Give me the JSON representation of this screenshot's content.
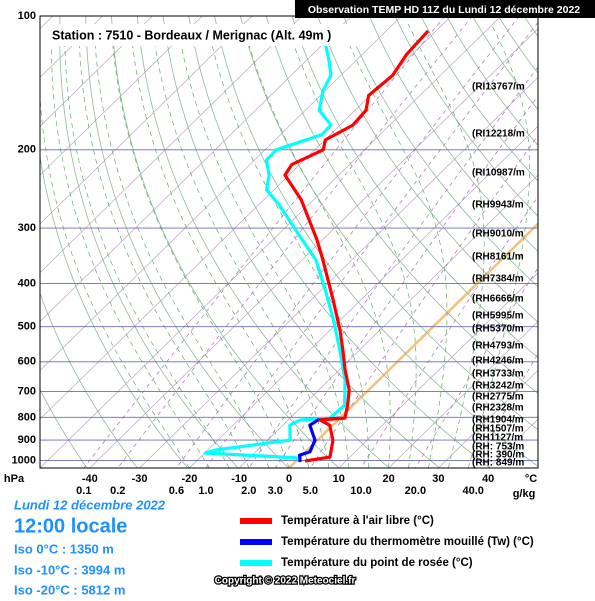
{
  "chart_data": {
    "type": "skewt",
    "title": "Observation TEMP HD 11Z du Lundi 12 décembre 2022",
    "station": "Station : 7510 - Bordeaux / Merignac (Alt. 49m )",
    "ylabel": "hPa",
    "xlabel": "°C",
    "log_y": true,
    "ylim": [
      100,
      1040
    ],
    "yticks": [
      100,
      200,
      300,
      400,
      500,
      600,
      700,
      800,
      900,
      1000
    ],
    "xlim": [
      -50,
      50
    ],
    "xticks": [
      -40,
      -30,
      -20,
      -10,
      0,
      10,
      20,
      30,
      40
    ],
    "mixing_ratio": {
      "label": "g/kg",
      "ticks": [
        0.1,
        0.2,
        0.6,
        {
          "value": 1,
          "label": "1.0"
        },
        {
          "value": 2,
          "label": "2.0"
        },
        {
          "value": 3,
          "label": "3.0"
        },
        {
          "value": 5,
          "label": "5.0"
        },
        {
          "value": 10,
          "label": "10.0"
        },
        {
          "value": 20,
          "label": "20.0"
        },
        {
          "value": 40,
          "label": "40.0"
        }
      ]
    },
    "series": [
      {
        "name": "Température à l'air libre (°C)",
        "color": "#ff0000",
        "pressure": [
          1003,
          983,
          900,
          833,
          811,
          803,
          751,
          694,
          626,
          565,
          509,
          436,
          354,
          319,
          259,
          228,
          216,
          200,
          190,
          176,
          163,
          151,
          136,
          122,
          108
        ],
        "values": [
          1.8,
          6.0,
          3.1,
          -0.6,
          -3.6,
          1.0,
          -1.1,
          -3.9,
          -8.8,
          -13.3,
          -18.0,
          -25.5,
          -35.8,
          -41.1,
          -52.5,
          -60.8,
          -61.6,
          -58.3,
          -59.9,
          -57.4,
          -57.8,
          -60.3,
          -59.6,
          -61.1,
          -61.6
        ]
      },
      {
        "name": "Température du thermomètre mouillé (Tw) (°C)",
        "color": "#0000ff",
        "pressure": [
          1008,
          973,
          957,
          900,
          833,
          811,
          803
        ],
        "values": [
          1.0,
          -0.5,
          0.9,
          -0.5,
          -4.6,
          -4.0,
          0
        ]
      },
      {
        "name": "Température du point de rosée (°C)",
        "color": "#00ffff",
        "pressure": [
          1008,
          988,
          977,
          962,
          948,
          900,
          833,
          811,
          803,
          751,
          659,
          565,
          483,
          414,
          354,
          303,
          266,
          246,
          228,
          211,
          200,
          185,
          176,
          163,
          147,
          136,
          126,
          108
        ],
        "values": [
          0.6,
          0.2,
          -8.2,
          -19.9,
          -18.5,
          -5.5,
          -8.6,
          -7.6,
          -2.0,
          -1.7,
          -6.8,
          -13.9,
          -21.4,
          -29.1,
          -37.2,
          -47.4,
          -55.9,
          -61.5,
          -64.0,
          -67.6,
          -67.7,
          -61.7,
          -61.8,
          -67.2,
          -70.5,
          -72.0,
          -75.4,
          -82.8
        ]
      }
    ],
    "height_labels": [
      "(RI13767/m",
      "(RI12218/m",
      "(RI10987/m",
      "(RH9943/m",
      "(RH9010/m",
      "(RH8161/m",
      "(RH7384/m",
      "(RH6666/m",
      "(RH5995/m",
      "(RH5370/m",
      "(RH4793/m",
      "(RH4246/m",
      "(RH3733/m",
      "(RH3242/m",
      "(RH2775/m",
      "(RH2328/m",
      "(RH1904/m",
      "(RH1507/m",
      "(RH1127/m",
      "(RH: 753/m",
      "(RH: 390/m",
      "(RH: 849/m"
    ],
    "info": {
      "date": "Lundi 12 décembre 2022",
      "time": "12:00 locale",
      "iso": [
        "Iso 0°C : 1350 m",
        "Iso -10°C : 3994 m",
        "Iso -20°C : 5812 m"
      ],
      "copyright": "Copyright © 2022 Meteociel.fr"
    }
  }
}
